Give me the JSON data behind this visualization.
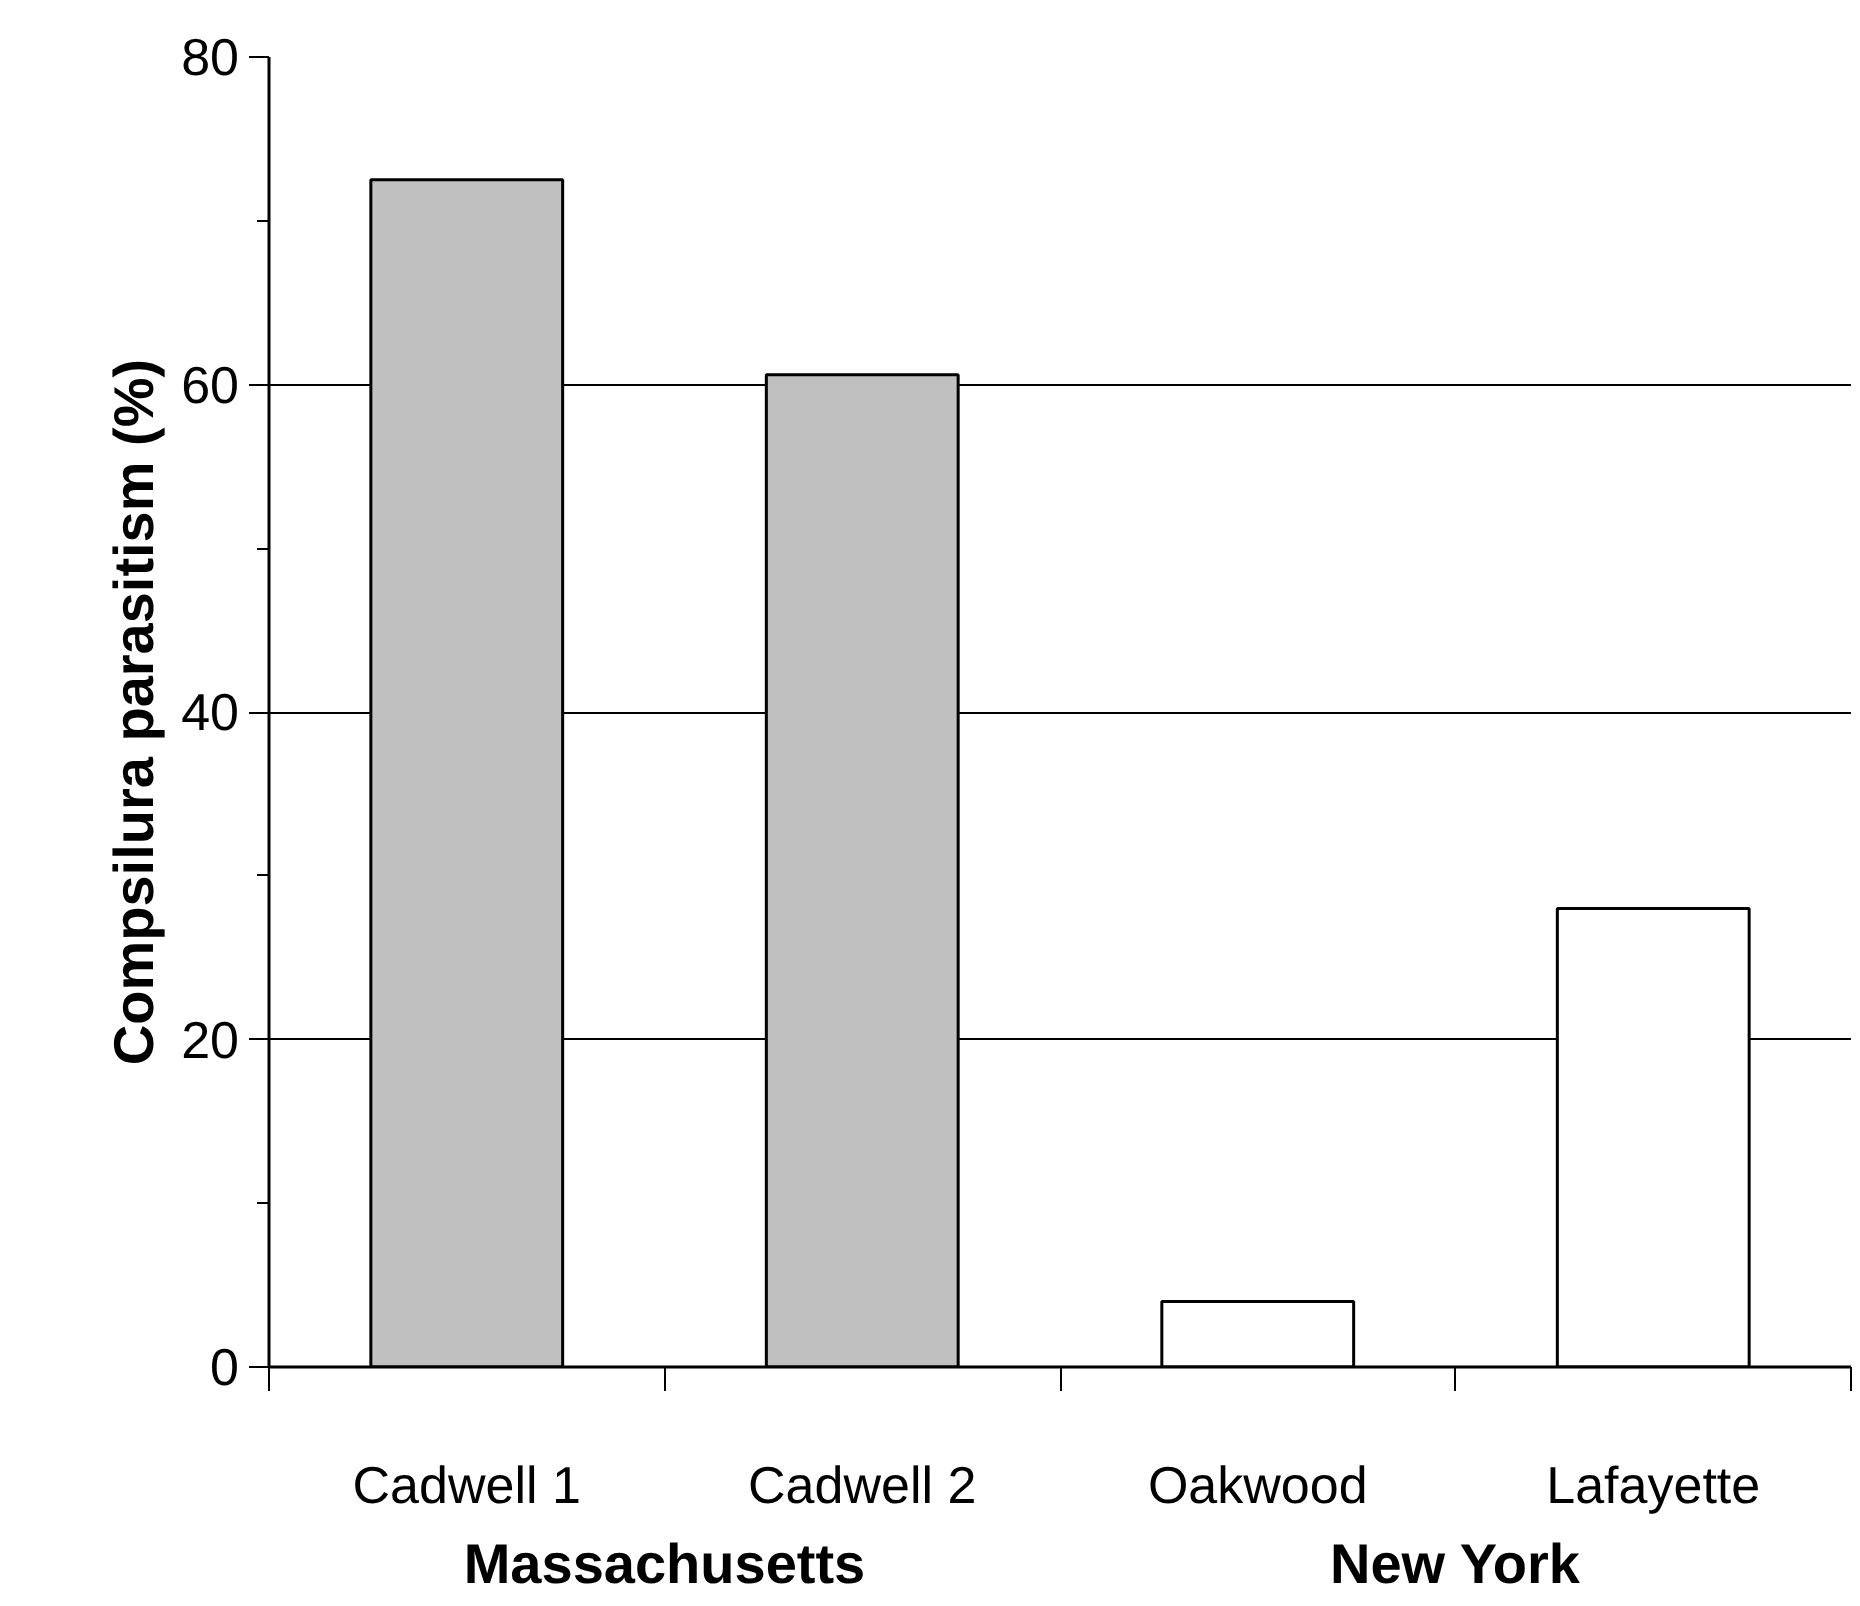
{
  "chart_data": {
    "type": "bar",
    "ylabel": "Compsilura parasitism (%)",
    "categories": [
      "Cadwell 1",
      "Cadwell 2",
      "Oakwood",
      "Lafayette"
    ],
    "values": [
      72.5,
      60.6,
      4.0,
      28.0
    ],
    "colors": [
      "#c0c0c0",
      "#c0c0c0",
      "#ffffff",
      "#ffffff"
    ],
    "ylim": [
      0,
      80
    ],
    "yticks": [
      0,
      {
        "value": 10,
        "label": null
      },
      20,
      {
        "value": 30,
        "label": null
      },
      40,
      {
        "value": 50,
        "label": null
      },
      60,
      {
        "value": 70,
        "label": null
      },
      80
    ],
    "grid": "y",
    "annotations": [
      "Massachusetts",
      "New York"
    ]
  }
}
